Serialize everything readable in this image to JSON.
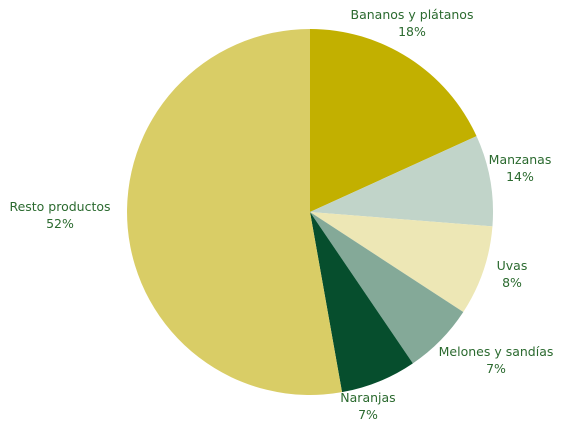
{
  "chart_data": {
    "type": "pie",
    "title": "",
    "slices": [
      {
        "name": "Bananos y plátanos",
        "value": 18,
        "label": "18%",
        "color": "#c2b000"
      },
      {
        "name": "Manzanas",
        "value": 14,
        "label": "14%",
        "color": "#c1d4c9"
      },
      {
        "name": "Uvas",
        "value": 8,
        "label": "8%",
        "color": "#ede7b5"
      },
      {
        "name": "Melones y sandías",
        "value": 7,
        "label": "7%",
        "color": "#84a998"
      },
      {
        "name": "Naranjas",
        "value": 7,
        "label": "7%",
        "color": "#064e2d"
      },
      {
        "name": "Resto productos",
        "value": 52,
        "label": "52%",
        "color": "#d9cd66"
      }
    ],
    "label_color": "#2b6a2f"
  }
}
